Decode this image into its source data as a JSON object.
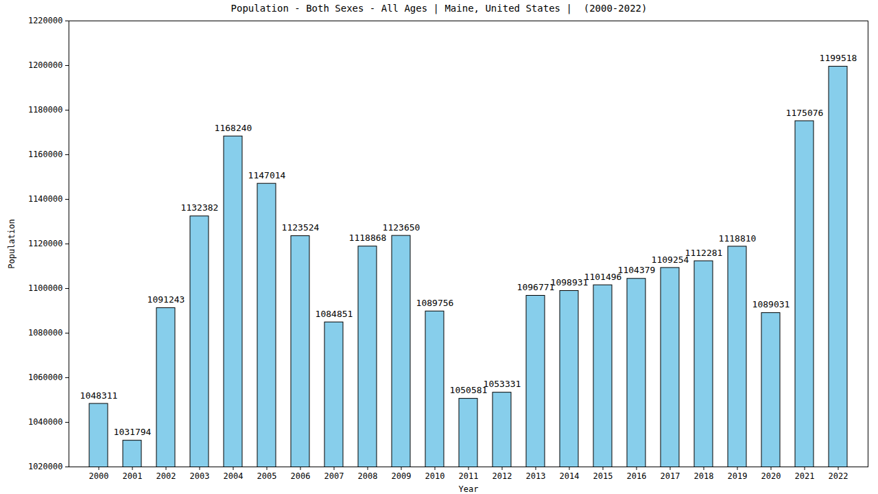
{
  "chart_data": {
    "type": "bar",
    "title": "Population - Both Sexes - All Ages | Maine, United States |  (2000-2022)",
    "x_label": "Year",
    "y_label": "Population",
    "categories": [
      "2000",
      "2001",
      "2002",
      "2003",
      "2004",
      "2005",
      "2006",
      "2007",
      "2008",
      "2009",
      "2010",
      "2011",
      "2012",
      "2013",
      "2014",
      "2015",
      "2016",
      "2017",
      "2018",
      "2019",
      "2020",
      "2021",
      "2022"
    ],
    "values": [
      1048311,
      1031794,
      1091243,
      1132382,
      1168240,
      1147014,
      1123524,
      1084851,
      1118868,
      1123650,
      1089756,
      1050581,
      1053331,
      1096771,
      1098931,
      1101496,
      1104379,
      1109254,
      1112281,
      1118810,
      1089031,
      1175076,
      1199518
    ],
    "color": "#87ceeb",
    "ylim": [
      1020000,
      1220000
    ],
    "yticks": [
      1020000,
      1040000,
      1060000,
      1080000,
      1100000,
      1120000,
      1140000,
      1160000,
      1180000,
      1200000,
      1220000
    ],
    "data_labels": true,
    "grid": false
  }
}
